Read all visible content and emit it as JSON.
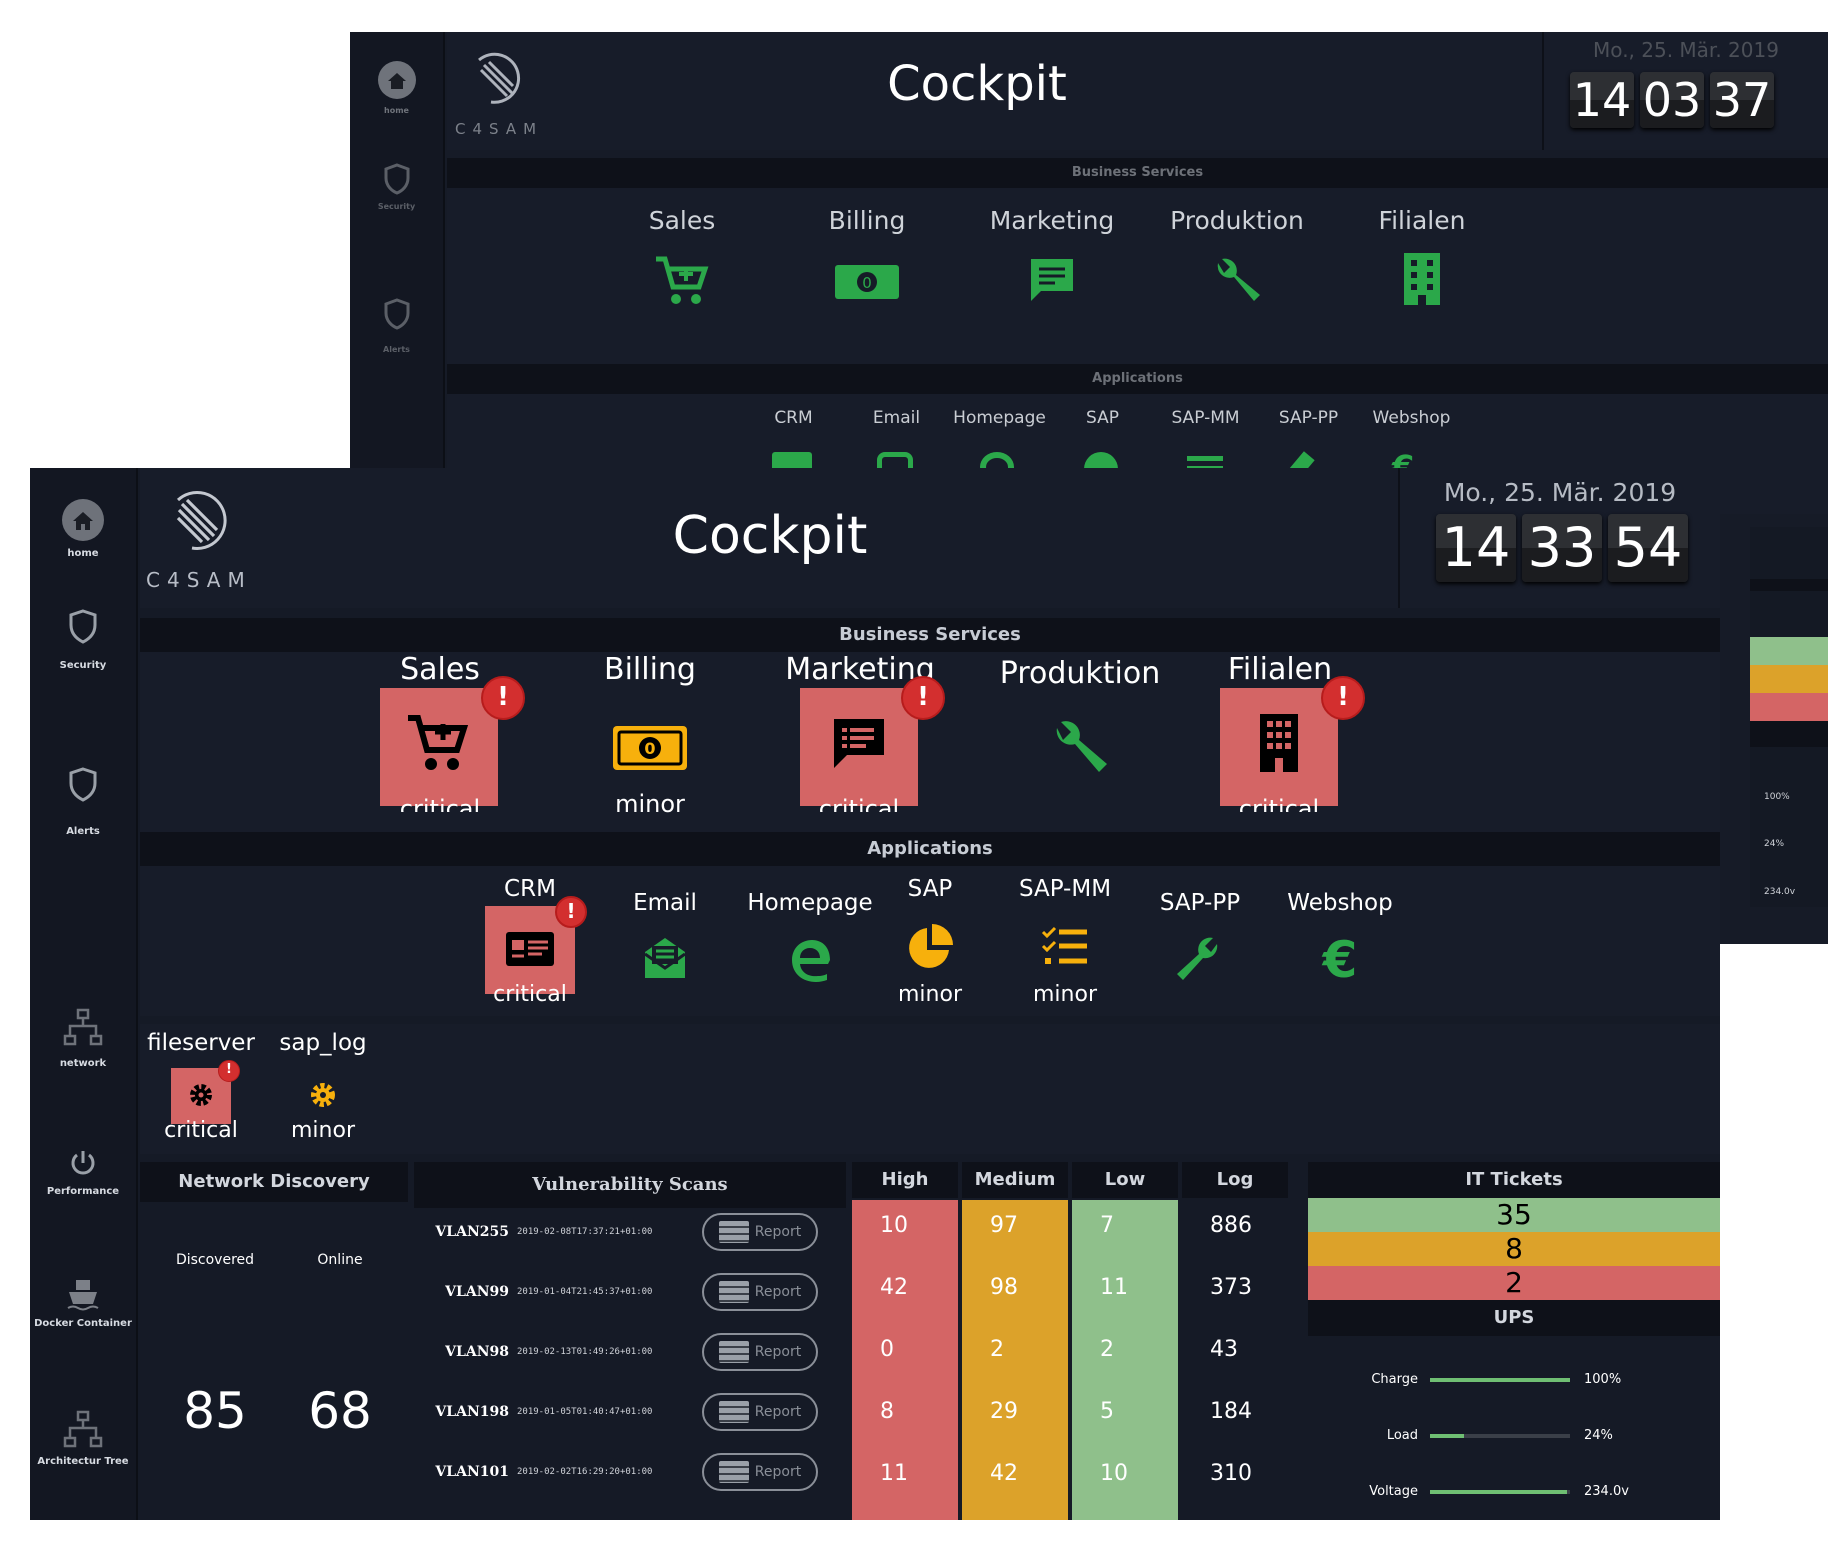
{
  "back": {
    "logo_text": "C4SAM",
    "title": "Cockpit",
    "date": "Mo., 25. Mär. 2019",
    "time": [
      "14",
      "03",
      "37"
    ],
    "business_services_title": "Business Services",
    "services": [
      "Sales",
      "Billing",
      "Marketing",
      "Produktion",
      "Filialen"
    ],
    "applications_title": "Applications",
    "apps": [
      "CRM",
      "Email",
      "Homepage",
      "SAP",
      "SAP-MM",
      "SAP-PP",
      "Webshop"
    ],
    "ups_values": [
      "100%",
      "24%",
      "234.0v"
    ],
    "nav": [
      "home",
      "Security",
      "Alerts"
    ]
  },
  "front": {
    "logo_text": "C4SAM",
    "title": "Cockpit",
    "date": "Mo., 25. Mär. 2019",
    "time": [
      "14",
      "33",
      "54"
    ],
    "nav": [
      "home",
      "Security",
      "Alerts",
      "network",
      "Performance",
      "Docker Container",
      "Architectur Tree"
    ],
    "business_services_title": "Business Services",
    "services": [
      {
        "name": "Sales",
        "status": "critical",
        "icon": "cart-icon"
      },
      {
        "name": "Billing",
        "status": "minor",
        "icon": "money-icon"
      },
      {
        "name": "Marketing",
        "status": "critical",
        "icon": "message-icon"
      },
      {
        "name": "Produktion",
        "status": "",
        "icon": "wrench-icon"
      },
      {
        "name": "Filialen",
        "status": "critical",
        "icon": "building-icon"
      }
    ],
    "applications_title": "Applications",
    "apps": [
      {
        "name": "CRM",
        "status": "critical",
        "icon": "id-card-icon"
      },
      {
        "name": "Email",
        "status": "",
        "icon": "mail-icon"
      },
      {
        "name": "Homepage",
        "status": "",
        "icon": "edge-icon"
      },
      {
        "name": "SAP",
        "status": "minor",
        "icon": "pie-icon"
      },
      {
        "name": "SAP-MM",
        "status": "minor",
        "icon": "checklist-icon"
      },
      {
        "name": "SAP-PP",
        "status": "",
        "icon": "wrench-icon"
      },
      {
        "name": "Webshop",
        "status": "",
        "icon": "euro-icon"
      }
    ],
    "hosts": [
      {
        "name": "fileserver",
        "status": "critical"
      },
      {
        "name": "sap_log",
        "status": "minor"
      }
    ],
    "network_discovery": {
      "title": "Network Discovery",
      "discovered_label": "Discovered",
      "online_label": "Online",
      "discovered": "85",
      "online": "68"
    },
    "vuln": {
      "title": "Vulnerability Scans",
      "report_label": "Report",
      "rows": [
        {
          "vlan": "VLAN255",
          "ts": "2019-02-08T17:37:21+01:00"
        },
        {
          "vlan": "VLAN99",
          "ts": "2019-01-04T21:45:37+01:00"
        },
        {
          "vlan": "VLAN98",
          "ts": "2019-02-13T01:49:26+01:00"
        },
        {
          "vlan": "VLAN198",
          "ts": "2019-01-05T01:40:47+01:00"
        },
        {
          "vlan": "VLAN101",
          "ts": "2019-02-02T16:29:20+01:00"
        }
      ]
    },
    "severity": {
      "headers": [
        "High",
        "Medium",
        "Low",
        "Log"
      ],
      "high": [
        "10",
        "42",
        "0",
        "8",
        "11"
      ],
      "medium": [
        "97",
        "98",
        "2",
        "29",
        "42"
      ],
      "low": [
        "7",
        "11",
        "2",
        "5",
        "10"
      ],
      "log": [
        "886",
        "373",
        "43",
        "184",
        "310"
      ]
    },
    "tickets": {
      "title": "IT Tickets",
      "values": [
        "35",
        "8",
        "2"
      ]
    },
    "ups": {
      "title": "UPS",
      "rows": [
        {
          "label": "Charge",
          "value": "100%",
          "level": 1.0
        },
        {
          "label": "Load",
          "value": "24%",
          "level": 0.24
        },
        {
          "label": "Voltage",
          "value": "234.0v",
          "level": 0.98
        }
      ]
    },
    "colors": {
      "critical": "#d46565",
      "minor": "#f7b00c",
      "ok": "#2ba84a",
      "high": "#d46565",
      "medium": "#dca22a",
      "low": "#8fc08b"
    }
  }
}
